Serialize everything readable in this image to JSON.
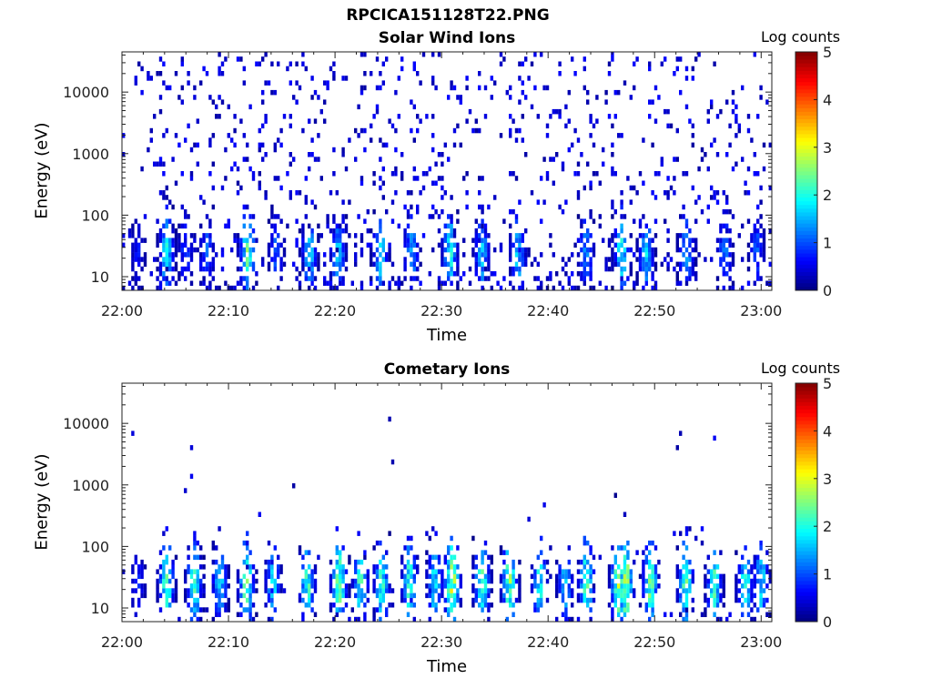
{
  "page": {
    "title": "RPCICA151128T22.PNG"
  },
  "chart_data": [
    {
      "type": "heatmap",
      "title": "Solar Wind Ions",
      "xlabel": "Time",
      "ylabel": "Energy (eV)",
      "x_tick_labels": [
        "22:00",
        "22:10",
        "22:20",
        "22:30",
        "22:40",
        "22:50",
        "23:00"
      ],
      "x_ticks_minutes": [
        0,
        10,
        20,
        30,
        40,
        50,
        60
      ],
      "xlim_minutes": [
        0,
        61
      ],
      "y_tick_labels": [
        "10",
        "100",
        "1000",
        "10000"
      ],
      "y_ticks": [
        10,
        100,
        1000,
        10000
      ],
      "ylim": [
        6,
        45000
      ],
      "yscale": "log",
      "colorbar": {
        "label": "Log counts",
        "min": 0,
        "max": 5,
        "ticks": [
          "0",
          "1",
          "2",
          "3",
          "4",
          "5"
        ],
        "colormap": "jet"
      },
      "activity_peaks_minutes": [
        [
          1.5,
          0.8
        ],
        [
          4.2,
          2.2
        ],
        [
          6.0,
          1.2
        ],
        [
          8.0,
          1.3
        ],
        [
          11.8,
          2.8
        ],
        [
          14.5,
          1.3
        ],
        [
          17.6,
          2.0
        ],
        [
          20.3,
          2.0
        ],
        [
          24.3,
          2.2
        ],
        [
          27.2,
          1.8
        ],
        [
          30.8,
          2.3
        ],
        [
          33.8,
          1.9
        ],
        [
          37.2,
          2.0
        ],
        [
          43.6,
          1.6
        ],
        [
          46.9,
          2.6
        ],
        [
          49.2,
          2.0
        ],
        [
          53.0,
          1.8
        ],
        [
          56.6,
          1.5
        ],
        [
          59.6,
          1.3
        ]
      ],
      "notes": "sparse low-count background (log counts ~0.3) from ~6 eV up to ~40000 eV; denser bursts at 10–100 eV"
    },
    {
      "type": "heatmap",
      "title": "Cometary Ions",
      "xlabel": "Time",
      "ylabel": "Energy (eV)",
      "x_tick_labels": [
        "22:00",
        "22:10",
        "22:20",
        "22:30",
        "22:40",
        "22:50",
        "23:00"
      ],
      "x_ticks_minutes": [
        0,
        10,
        20,
        30,
        40,
        50,
        60
      ],
      "xlim_minutes": [
        0,
        61
      ],
      "y_tick_labels": [
        "10",
        "100",
        "1000",
        "10000"
      ],
      "y_ticks": [
        10,
        100,
        1000,
        10000
      ],
      "ylim": [
        6,
        45000
      ],
      "yscale": "log",
      "colorbar": {
        "label": "Log counts",
        "min": 0,
        "max": 5,
        "ticks": [
          "0",
          "1",
          "2",
          "3",
          "4",
          "5"
        ],
        "colormap": "jet"
      },
      "activity_peaks_minutes": [
        [
          1.5,
          1.0
        ],
        [
          4.2,
          2.7
        ],
        [
          6.8,
          2.6
        ],
        [
          9.2,
          2.0
        ],
        [
          11.7,
          2.9
        ],
        [
          14.2,
          2.0
        ],
        [
          17.4,
          2.6
        ],
        [
          20.4,
          2.9
        ],
        [
          22.4,
          2.5
        ],
        [
          24.4,
          2.5
        ],
        [
          27.0,
          2.6
        ],
        [
          29.4,
          2.3
        ],
        [
          31.0,
          3.4
        ],
        [
          33.8,
          3.0
        ],
        [
          36.4,
          3.0
        ],
        [
          39.2,
          2.5
        ],
        [
          41.6,
          2.0
        ],
        [
          43.6,
          2.8
        ],
        [
          46.6,
          3.3
        ],
        [
          47.3,
          3.4
        ],
        [
          49.6,
          3.0
        ],
        [
          52.9,
          2.8
        ],
        [
          55.6,
          2.7
        ],
        [
          58.5,
          2.4
        ],
        [
          60.0,
          2.2
        ]
      ],
      "notes": "bright bursts concentrated at ~10–300 eV; scattered isolated pixels up to ~13000 eV"
    }
  ]
}
